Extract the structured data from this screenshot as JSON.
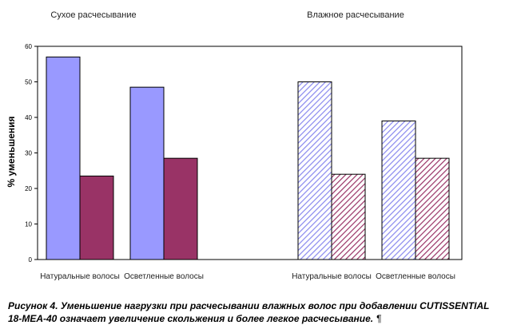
{
  "chart_data": {
    "type": "bar",
    "groups": [
      {
        "title": "Сухое расчесывание",
        "categories": [
          "Натуральные волосы",
          "Осветленные волосы"
        ],
        "style": "solid"
      },
      {
        "title": "Влажное расчесывание",
        "categories": [
          "Натуральные волосы",
          "Осветленные волосы"
        ],
        "style": "hatched"
      }
    ],
    "series": [
      {
        "color": "#9999ff",
        "values": [
          57,
          48.5,
          50,
          39
        ]
      },
      {
        "color": "#993366",
        "values": [
          23.5,
          28.5,
          24,
          28.5
        ]
      }
    ],
    "ylabel": "% уменьшения",
    "ylim": [
      0,
      60
    ],
    "yticks": [
      "0",
      "10",
      "20",
      "30",
      "40",
      "50",
      "60"
    ],
    "grid": false,
    "legend": "none"
  },
  "caption": {
    "text": "Рисунок 4. Уменьшение нагрузки при расчесывании влажных волос при добавлении CUTISSENTIAL 18-MEA-40 означает увеличение скольжения и более легкое расчесывание.",
    "mark": "¶"
  }
}
